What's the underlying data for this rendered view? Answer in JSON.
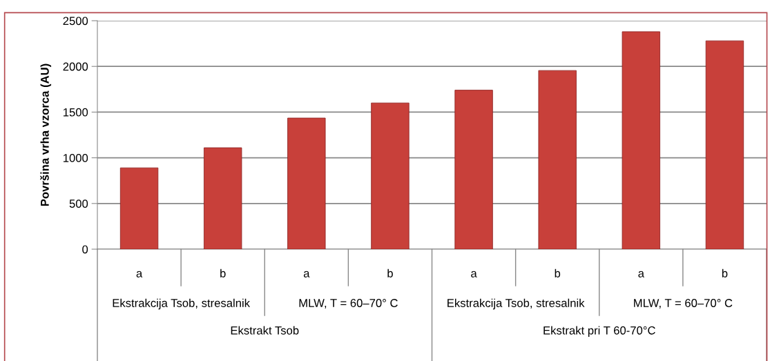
{
  "chart_data": {
    "type": "bar",
    "ylabel": "Površina vrha vzorca (AU)",
    "categories": [
      "a",
      "b",
      "a",
      "b",
      "a",
      "b",
      "a",
      "b"
    ],
    "values": [
      890,
      1110,
      1435,
      1600,
      1740,
      1955,
      2380,
      2280
    ],
    "color": "#c8403a",
    "ylim": [
      0,
      2500
    ],
    "yticks": [
      0,
      500,
      1000,
      1500,
      2000,
      2500
    ],
    "grid": "y",
    "annotations": [
      "Ekstrakcija Tsob, stresalnik",
      "MLW, T = 60–70° C",
      "Ekstrakcija Tsob, stresalnik",
      "MLW, T = 60–70° C",
      "Ekstrakt Tsob",
      "Ekstrakt pri T 60-70°C"
    ]
  }
}
